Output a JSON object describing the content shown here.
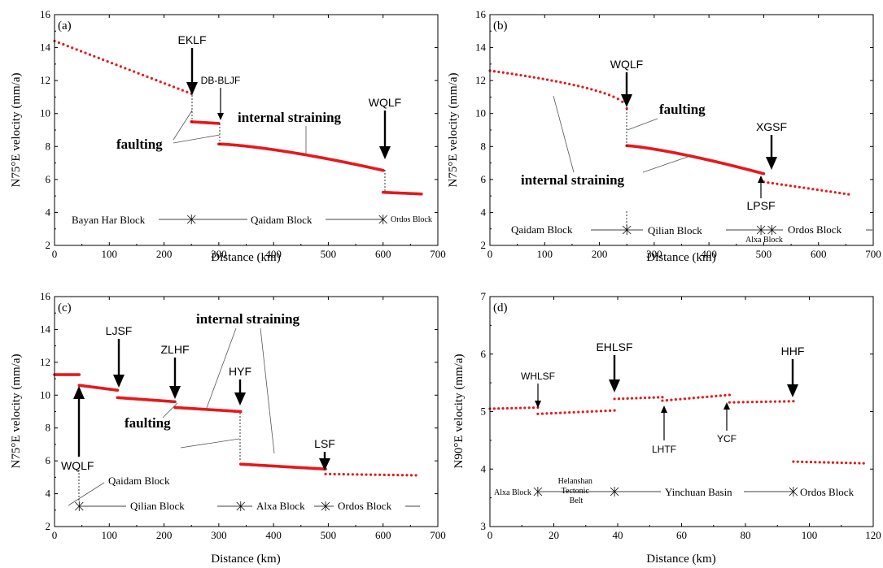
{
  "chart_data": [
    {
      "type": "scatter",
      "panel": "(a)",
      "xlabel": "Distance (km)",
      "ylabel": "N75°E velocity (mm/a)",
      "xlim": [
        0,
        700
      ],
      "ylim": [
        2,
        16
      ],
      "xticks": [
        0,
        100,
        200,
        300,
        400,
        500,
        600,
        700
      ],
      "yticks": [
        2,
        4,
        6,
        8,
        10,
        12,
        14,
        16
      ],
      "color": "#e41a1c",
      "segments": [
        {
          "x0": 0,
          "x1": 250,
          "y0": 14.4,
          "y1": 11.2,
          "density": "sparse"
        },
        {
          "x0": 250,
          "x1": 300,
          "y0": 9.5,
          "y1": 9.4,
          "density": "dense"
        },
        {
          "x0": 300,
          "x1": 600,
          "y0": 8.15,
          "y1": 6.55,
          "curve": 1.4,
          "density": "dense"
        },
        {
          "x0": 600,
          "x1": 670,
          "y0": 5.22,
          "y1": 5.12,
          "density": "dense"
        }
      ],
      "faults": [
        {
          "label": "EKLF",
          "x": 250
        },
        {
          "label": "DB-BLJF",
          "x": 300
        },
        {
          "label": "WQLF",
          "x": 600
        }
      ],
      "annotations": [
        "faulting",
        "internal straining"
      ],
      "blocks": [
        "Bayan Har Block",
        "Qaidam Block",
        "Ordos Block"
      ],
      "block_boundaries": [
        250,
        600
      ]
    },
    {
      "type": "scatter",
      "panel": "(b)",
      "xlabel": "Distance (km)",
      "ylabel": "N75°E velocity (mm/a)",
      "xlim": [
        0,
        700
      ],
      "ylim": [
        2,
        16
      ],
      "xticks": [
        0,
        100,
        200,
        300,
        400,
        500,
        600,
        700
      ],
      "yticks": [
        2,
        4,
        6,
        8,
        10,
        12,
        14,
        16
      ],
      "color": "#e41a1c",
      "segments": [
        {
          "x0": 0,
          "x1": 250,
          "y0": 12.6,
          "y1": 10.3,
          "curve": -0.5,
          "density": "sparse"
        },
        {
          "x0": 250,
          "x1": 500,
          "y0": 8.05,
          "y1": 6.35,
          "curve": 1.3,
          "density": "dense"
        },
        {
          "x0": 500,
          "x1": 655,
          "y0": 5.85,
          "y1": 5.1,
          "density": "sparse"
        }
      ],
      "faults": [
        {
          "label": "WQLF",
          "x": 250
        },
        {
          "label": "XGSF",
          "x": 515
        },
        {
          "label": "LPSF",
          "x": 495
        }
      ],
      "annotations": [
        "faulting",
        "internal straining"
      ],
      "blocks": [
        "Qaidam Block",
        "Qilian Block",
        "Alxa Block",
        "Ordos Block"
      ],
      "block_boundaries": [
        250,
        495,
        515
      ]
    },
    {
      "type": "scatter",
      "panel": "(c)",
      "xlabel": "Distance (km)",
      "ylabel": "N75°E velocity (mm/a)",
      "xlim": [
        0,
        700
      ],
      "ylim": [
        2,
        16
      ],
      "xticks": [
        0,
        100,
        200,
        300,
        400,
        500,
        600,
        700
      ],
      "yticks": [
        2,
        4,
        6,
        8,
        10,
        12,
        14,
        16
      ],
      "color": "#e41a1c",
      "segments": [
        {
          "x0": 0,
          "x1": 45,
          "y0": 11.25,
          "y1": 11.25,
          "density": "dense"
        },
        {
          "x0": 45,
          "x1": 115,
          "y0": 10.6,
          "y1": 10.3,
          "density": "dense"
        },
        {
          "x0": 115,
          "x1": 220,
          "y0": 9.85,
          "y1": 9.6,
          "density": "dense"
        },
        {
          "x0": 220,
          "x1": 340,
          "y0": 9.25,
          "y1": 9.0,
          "density": "dense"
        },
        {
          "x0": 340,
          "x1": 495,
          "y0": 5.8,
          "y1": 5.5,
          "density": "dense"
        },
        {
          "x0": 495,
          "x1": 660,
          "y0": 5.2,
          "y1": 5.12,
          "density": "sparse"
        }
      ],
      "faults": [
        {
          "label": "WQLF",
          "x": 45
        },
        {
          "label": "LJSF",
          "x": 115
        },
        {
          "label": "ZLHF",
          "x": 220
        },
        {
          "label": "HYF",
          "x": 340
        },
        {
          "label": "LSF",
          "x": 495
        }
      ],
      "annotations": [
        "faulting",
        "internal straining"
      ],
      "blocks": [
        "Qaidam Block",
        "Qilian Block",
        "Alxa Block",
        "Ordos Block"
      ],
      "block_boundaries": [
        45,
        340,
        495
      ]
    },
    {
      "type": "scatter",
      "panel": "(d)",
      "xlabel": "Distance (km)",
      "ylabel": "N90°E velocity (mm/a)",
      "xlim": [
        0,
        120
      ],
      "ylim": [
        3,
        7
      ],
      "xticks": [
        0,
        20,
        40,
        60,
        80,
        100,
        120
      ],
      "yticks": [
        3,
        4,
        5,
        6,
        7
      ],
      "color": "#e41a1c",
      "segments": [
        {
          "x0": 0,
          "x1": 15,
          "y0": 5.05,
          "y1": 5.07,
          "density": "sparse"
        },
        {
          "x0": 15,
          "x1": 39,
          "y0": 4.96,
          "y1": 5.02,
          "density": "sparse"
        },
        {
          "x0": 39,
          "x1": 54,
          "y0": 5.22,
          "y1": 5.25,
          "density": "sparse"
        },
        {
          "x0": 54,
          "x1": 75,
          "y0": 5.19,
          "y1": 5.29,
          "density": "sparse"
        },
        {
          "x0": 75,
          "x1": 95,
          "y0": 5.16,
          "y1": 5.18,
          "density": "sparse"
        },
        {
          "x0": 95,
          "x1": 117,
          "y0": 4.13,
          "y1": 4.1,
          "density": "sparse"
        }
      ],
      "faults": [
        {
          "label": "WHLSF",
          "x": 15
        },
        {
          "label": "EHLSF",
          "x": 39
        },
        {
          "label": "LHTF",
          "x": 54
        },
        {
          "label": "YCF",
          "x": 74
        },
        {
          "label": "HHF",
          "x": 95
        }
      ],
      "blocks": [
        "Alxa Block",
        "Helanshan Tectonic Belt",
        "Yinchuan Basin",
        "Ordos Block"
      ],
      "block_boundaries": [
        15,
        39,
        95
      ]
    }
  ]
}
